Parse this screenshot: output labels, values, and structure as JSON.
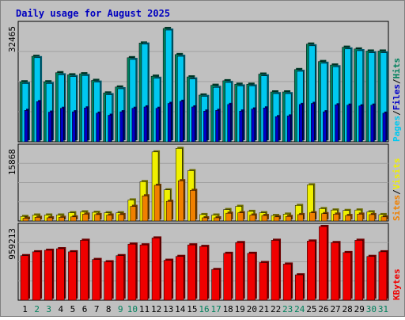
{
  "chart_data": [
    {
      "type": "bar",
      "title": "Daily usage for August 2025",
      "panel": "hits-files-pages",
      "ymax_label": "32465",
      "ylim": [
        0,
        34500
      ],
      "legend": [
        "Pages",
        "Files",
        "Hits"
      ],
      "colors": {
        "Hits": "#00805c",
        "Files": "#00c8f0",
        "Pages": "#0000c8"
      },
      "categories": [
        "1",
        "2",
        "3",
        "4",
        "5",
        "6",
        "7",
        "8",
        "9",
        "10",
        "11",
        "12",
        "13",
        "14",
        "15",
        "16",
        "17",
        "18",
        "19",
        "20",
        "21",
        "22",
        "23",
        "24",
        "25",
        "26",
        "27",
        "28",
        "29",
        "30",
        "31"
      ],
      "series": [
        {
          "name": "Hits",
          "values": [
            17200,
            24500,
            17200,
            19800,
            19200,
            19500,
            17600,
            14000,
            15700,
            24100,
            28300,
            18800,
            32465,
            25000,
            18600,
            13400,
            16200,
            17500,
            16500,
            16500,
            19400,
            14300,
            14300,
            20700,
            28000,
            23000,
            22000,
            27100,
            26600,
            26000,
            26000
          ]
        },
        {
          "name": "Files",
          "values": [
            16700,
            24100,
            16700,
            19200,
            18700,
            19000,
            17100,
            13500,
            15200,
            23600,
            28000,
            18200,
            32000,
            24500,
            18000,
            13000,
            15600,
            17000,
            16000,
            16000,
            18900,
            13800,
            13800,
            20200,
            27500,
            22500,
            21500,
            26600,
            26100,
            25500,
            25500
          ]
        },
        {
          "name": "Pages",
          "values": [
            9000,
            11500,
            8500,
            9600,
            8600,
            9700,
            8200,
            7600,
            8600,
            9600,
            10000,
            9600,
            11000,
            11600,
            10000,
            8800,
            9000,
            10700,
            8800,
            9400,
            9700,
            7200,
            7400,
            10700,
            11000,
            8600,
            10600,
            10500,
            10300,
            10500,
            8200
          ]
        }
      ]
    },
    {
      "type": "bar",
      "panel": "sites-visits",
      "ymax_label": "15868",
      "ylim": [
        0,
        16800
      ],
      "legend": [
        "Sites",
        "Visits"
      ],
      "colors": {
        "Visits": "#f0f000",
        "Sites": "#f08000"
      },
      "categories": [
        "1",
        "2",
        "3",
        "4",
        "5",
        "6",
        "7",
        "8",
        "9",
        "10",
        "11",
        "12",
        "13",
        "14",
        "15",
        "16",
        "17",
        "18",
        "19",
        "20",
        "21",
        "22",
        "23",
        "24",
        "25",
        "26",
        "27",
        "28",
        "29",
        "30",
        "31"
      ],
      "series": [
        {
          "name": "Visits",
          "values": [
            1000,
            1300,
            1300,
            1300,
            1800,
            2000,
            1900,
            1800,
            1800,
            4600,
            8600,
            15100,
            6800,
            15868,
            11000,
            1400,
            1300,
            2500,
            3200,
            2100,
            1800,
            1200,
            1500,
            3400,
            7900,
            2700,
            2400,
            2300,
            2400,
            2000,
            1400
          ]
        },
        {
          "name": "Sites",
          "values": [
            600,
            800,
            700,
            800,
            900,
            1500,
            1400,
            1300,
            1400,
            3200,
            5500,
            7800,
            4300,
            8800,
            6700,
            700,
            700,
            1700,
            1800,
            1300,
            1200,
            900,
            1000,
            1400,
            1800,
            1600,
            1500,
            1200,
            1500,
            1400,
            900
          ]
        }
      ]
    },
    {
      "type": "bar",
      "panel": "kbytes",
      "ymax_label": "959213",
      "ylim": [
        0,
        1000000
      ],
      "legend": [
        "KBytes"
      ],
      "colors": {
        "KBytes": "#f00000"
      },
      "categories": [
        "1",
        "2",
        "3",
        "4",
        "5",
        "6",
        "7",
        "8",
        "9",
        "10",
        "11",
        "12",
        "13",
        "14",
        "15",
        "16",
        "17",
        "18",
        "19",
        "20",
        "21",
        "22",
        "23",
        "24",
        "25",
        "26",
        "27",
        "28",
        "29",
        "30",
        "31"
      ],
      "series": [
        {
          "name": "KBytes",
          "values": [
            580000,
            630000,
            650000,
            670000,
            630000,
            780000,
            530000,
            500000,
            580000,
            730000,
            720000,
            810000,
            520000,
            570000,
            720000,
            700000,
            400000,
            610000,
            750000,
            610000,
            490000,
            780000,
            470000,
            330000,
            770000,
            959213,
            750000,
            620000,
            780000,
            570000,
            630000
          ]
        }
      ]
    }
  ],
  "weekend_days": [
    "2",
    "3",
    "9",
    "10",
    "16",
    "17",
    "23",
    "24",
    "30",
    "31"
  ],
  "colors": {
    "title": "#0000c0",
    "weekday_label": "#000000",
    "weekend_label": "#00805c",
    "panel_bg": "#c0c0c0"
  }
}
